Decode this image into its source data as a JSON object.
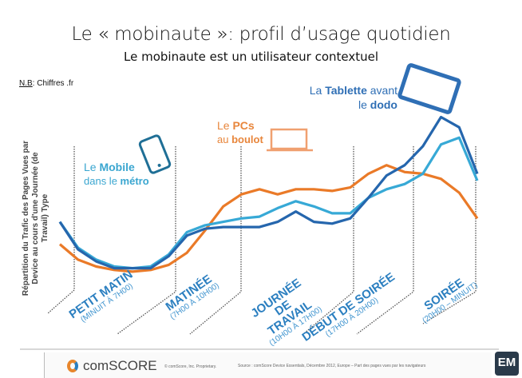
{
  "slide": {
    "title": "Le « mobinaute »: profil d’usage quotidien",
    "subtitle": "Le mobinaute est un utilisateur contextuel",
    "note_label": "N.B",
    "note_text": ": Chiffres .fr"
  },
  "annotations": {
    "mobile": {
      "l1a": "Le ",
      "l1b": "Mobile",
      "l2a": "dans le ",
      "l2b": "métro",
      "color": "#3aa6d0",
      "icon": "smartphone-icon"
    },
    "pc": {
      "l1a": "Le ",
      "l1b": "PCs",
      "l2a": "au ",
      "l2b": "boulot",
      "color": "#e8863c",
      "icon": "laptop-icon"
    },
    "tablet": {
      "l1a": "La ",
      "l1b": "Tablette",
      "l1c": " avant",
      "l2a": "le ",
      "l2b": "dodo",
      "color": "#2f6fb5",
      "icon": "tablet-icon"
    }
  },
  "chart_data": {
    "type": "line",
    "ylabel": "Répartition du Trafic des Pages Vues par Device au cours d'une Journée (de Travail) Type",
    "x": [
      0,
      1,
      2,
      3,
      4,
      5,
      6,
      7,
      8,
      9,
      10,
      11,
      12,
      13,
      14,
      15,
      16,
      17,
      18,
      19,
      20,
      21,
      22,
      23
    ],
    "ylim": [
      0,
      100
    ],
    "grid": false,
    "series": [
      {
        "device": "PC",
        "color": "#ea7a28",
        "values": [
          23,
          14,
          10,
          8,
          7,
          8,
          11,
          18,
          31,
          45,
          52,
          55,
          52,
          55,
          55,
          54,
          56,
          64,
          69,
          65,
          64,
          61,
          53,
          38
        ]
      },
      {
        "device": "Mobile",
        "color": "#37a9d6",
        "values": [
          36,
          21,
          14,
          10,
          9,
          10,
          17,
          30,
          34,
          36,
          38,
          39,
          44,
          48,
          45,
          41,
          41,
          50,
          55,
          58,
          64,
          81,
          85,
          60
        ]
      },
      {
        "device": "Tablette",
        "color": "#2566ad",
        "values": [
          36,
          20,
          13,
          9,
          9,
          9,
          16,
          28,
          32,
          33,
          33,
          33,
          36,
          42,
          36,
          35,
          38,
          50,
          63,
          69,
          80,
          97,
          91,
          64
        ]
      }
    ],
    "periods": [
      {
        "name": "PETIT MATIN",
        "time": "(MINUIT À 7H00)"
      },
      {
        "name": "MATINÉE",
        "time": "(7H00 À 10H00)"
      },
      {
        "name": "JOURNÉE DE TRAVAIL",
        "time": "(10H00 À 17H00)"
      },
      {
        "name": "DÉBUT DE SOIRÉE",
        "time": "(17H00 À 20H00)"
      },
      {
        "name": "SOIRÉE",
        "time": "(20H00 – MINUIT)"
      }
    ]
  },
  "footer": {
    "brand": "comSCORE",
    "copyright": "© comScore, Inc.   Proprietary.",
    "source": "Source : comScore Device Essentials, Décembre 2012, Europe – Part des pages vues par les navigateurs",
    "badge": "EM"
  }
}
